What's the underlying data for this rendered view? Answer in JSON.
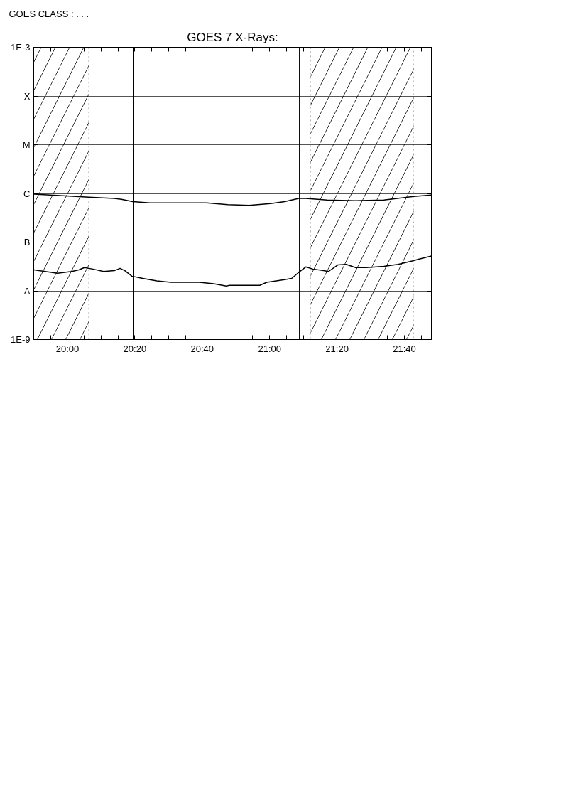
{
  "chart_data": {
    "type": "line",
    "title": "GOES 7 X-Rays:",
    "annotations": [
      "GOES CLASS : . . ."
    ],
    "xlim": [
      19.8333,
      21.8
    ],
    "xticks": [
      {
        "value": 19.9167,
        "label": null
      },
      {
        "value": 20,
        "label": "20:00"
      },
      {
        "value": 20.0833,
        "label": null
      },
      {
        "value": 20.1667,
        "label": null
      },
      {
        "value": 20.25,
        "label": null
      },
      {
        "value": 20.3333,
        "label": "20:20"
      },
      {
        "value": 20.4167,
        "label": null
      },
      {
        "value": 20.5,
        "label": null
      },
      {
        "value": 20.5833,
        "label": null
      },
      {
        "value": 20.6667,
        "label": "20:40"
      },
      {
        "value": 20.75,
        "label": null
      },
      {
        "value": 20.8333,
        "label": null
      },
      {
        "value": 20.9167,
        "label": null
      },
      {
        "value": 21,
        "label": "21:00"
      },
      {
        "value": 21.0833,
        "label": null
      },
      {
        "value": 21.1667,
        "label": null
      },
      {
        "value": 21.25,
        "label": null
      },
      {
        "value": 21.3333,
        "label": "21:20"
      },
      {
        "value": 21.4167,
        "label": null
      },
      {
        "value": 21.5,
        "label": null
      },
      {
        "value": 21.5833,
        "label": null
      },
      {
        "value": 21.6667,
        "label": "21:40"
      },
      {
        "value": 21.75,
        "label": null
      }
    ],
    "ylim": [
      1e-09,
      0.001
    ],
    "yticks": [
      {
        "value": 0.001,
        "label": "1E-3"
      },
      {
        "value": 0.0001,
        "label": "X"
      },
      {
        "value": 1e-05,
        "label": "M"
      },
      {
        "value": 1e-06,
        "label": "C"
      },
      {
        "value": 1e-07,
        "label": "B"
      },
      {
        "value": 1e-08,
        "label": "A"
      },
      {
        "value": 1e-09,
        "label": "1E-9"
      }
    ],
    "log": "y",
    "grid": "y",
    "line_style": "solid",
    "marker": "none",
    "series": [
      {
        "color": "#000000",
        "x": [
          19.835,
          20.105,
          20.232,
          20.267,
          20.323,
          20.407,
          20.547,
          20.688,
          20.793,
          20.898,
          21.004,
          21.074,
          21.144,
          21.179,
          21.284,
          21.425,
          21.565,
          21.712,
          21.8
        ],
        "values": [
          9.7e-07,
          8.4e-07,
          7.9e-07,
          7.6e-07,
          6.8e-07,
          6.4e-07,
          6.4e-07,
          6.4e-07,
          5.9e-07,
          5.7e-07,
          6.2e-07,
          6.8e-07,
          7.9e-07,
          7.9e-07,
          7.3e-07,
          7.1e-07,
          7.3e-07,
          8.7e-07,
          9.3e-07
        ]
      },
      {
        "color": "#000000",
        "x": [
          19.835,
          19.951,
          20.021,
          20.056,
          20.084,
          20.126,
          20.179,
          20.232,
          20.26,
          20.284,
          20.319,
          20.372,
          20.442,
          20.512,
          20.582,
          20.653,
          20.723,
          20.786,
          20.8,
          20.863,
          20.951,
          20.986,
          21.074,
          21.109,
          21.144,
          21.179,
          21.214,
          21.267,
          21.291,
          21.337,
          21.379,
          21.425,
          21.477,
          21.565,
          21.635,
          21.705,
          21.74,
          21.8
        ],
        "values": [
          2.7e-08,
          2.3e-08,
          2.5e-08,
          2.7e-08,
          3e-08,
          2.8e-08,
          2.5e-08,
          2.6e-08,
          2.9e-08,
          2.6e-08,
          2e-08,
          1.8e-08,
          1.6e-08,
          1.5e-08,
          1.5e-08,
          1.5e-08,
          1.4e-08,
          1.25e-08,
          1.3e-08,
          1.3e-08,
          1.3e-08,
          1.5e-08,
          1.7e-08,
          1.8e-08,
          2.4e-08,
          3.1e-08,
          2.8e-08,
          2.6e-08,
          2.5e-08,
          3.4e-08,
          3.5e-08,
          3e-08,
          3e-08,
          3.2e-08,
          3.5e-08,
          4.1e-08,
          4.5e-08,
          5.2e-08
        ]
      }
    ],
    "bands": [
      {
        "axis": "x",
        "from": 19.8333,
        "to": 20.105,
        "color": "#000000"
      },
      {
        "axis": "x",
        "from": 21.203,
        "to": 21.712,
        "color": "#000000"
      }
    ],
    "ref_lines": [
      {
        "axis": "x",
        "value": 20.325,
        "line_style": "solid",
        "color": "#000000"
      },
      {
        "axis": "x",
        "value": 21.147,
        "line_style": "solid",
        "color": "#000000"
      }
    ]
  }
}
